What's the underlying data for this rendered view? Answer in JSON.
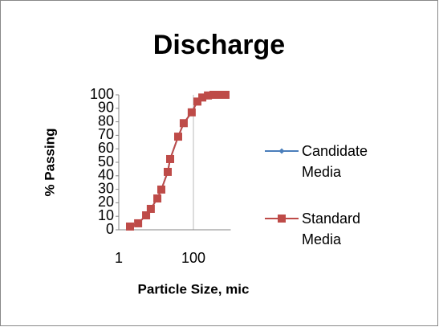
{
  "chart_data": {
    "type": "line",
    "title": "Discharge",
    "x_label": "Particle Size, mic",
    "y_label": "% Passing",
    "x_log": true,
    "xlim": [
      1,
      1000
    ],
    "xticks": [
      1,
      100
    ],
    "ylim": [
      0,
      100
    ],
    "yticks": [
      0,
      10,
      20,
      30,
      40,
      50,
      60,
      70,
      80,
      90,
      100
    ],
    "x_grid": true,
    "legend": "right",
    "x": [
      2,
      3.3,
      5.4,
      7.2,
      10.8,
      13.8,
      20.5,
      23.8,
      39,
      55,
      90,
      128,
      173,
      245,
      345,
      490,
      725
    ],
    "series": [
      {
        "name": "Candidate Media",
        "color": "#4a7ebb",
        "marker": "diamond",
        "values": [
          2.4,
          4.8,
          10.7,
          15.5,
          23.2,
          29.8,
          42.9,
          52.4,
          69,
          79,
          87,
          95,
          98,
          99.5,
          100,
          100,
          100
        ]
      },
      {
        "name": "Standard Media",
        "color": "#be4b48",
        "marker": "square",
        "values": [
          2.4,
          4.8,
          10.7,
          15.5,
          23.2,
          29.8,
          42.9,
          52.4,
          69,
          79,
          87,
          95,
          98,
          99.5,
          100,
          100,
          100
        ]
      }
    ]
  }
}
